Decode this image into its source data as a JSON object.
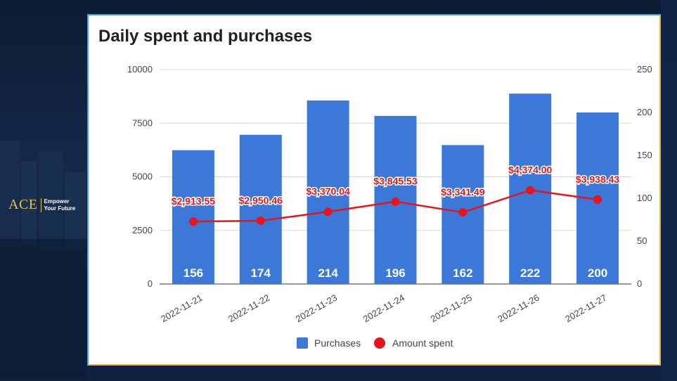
{
  "brand": {
    "mark": "ACE",
    "line1": "Empower",
    "line2": "Your Future",
    "color": "#e8c15a"
  },
  "chart_data": {
    "type": "bar",
    "title": "Daily spent and purchases",
    "categories": [
      "2022-11-21",
      "2022-11-22",
      "2022-11-23",
      "2022-11-24",
      "2022-11-25",
      "2022-11-26",
      "2022-11-27"
    ],
    "series": [
      {
        "name": "Purchases",
        "type": "bar",
        "axis": "left",
        "color": "#3c78d8",
        "values": [
          156,
          174,
          214,
          196,
          162,
          222,
          200
        ],
        "labels": [
          "156",
          "174",
          "214",
          "196",
          "162",
          "222",
          "200"
        ]
      },
      {
        "name": "Amount spent",
        "type": "line",
        "axis": "right",
        "color": "#e8141c",
        "values": [
          2913.55,
          2950.46,
          3370.04,
          3845.53,
          3341.49,
          4374.0,
          3938.43
        ],
        "labels": [
          "$2,913.55",
          "$2,950.46",
          "$3,370.04",
          "$3,845.53",
          "$3,341.49",
          "$4,374.00",
          "$3,938.43"
        ]
      }
    ],
    "y_left": {
      "min": 0,
      "max": 10000,
      "ticks": [
        0,
        2500,
        5000,
        7500,
        10000
      ]
    },
    "y_right": {
      "min": 0,
      "max": 250,
      "ticks": [
        0,
        50,
        100,
        150,
        200,
        250
      ]
    },
    "grid": true,
    "legend": "bottom"
  }
}
